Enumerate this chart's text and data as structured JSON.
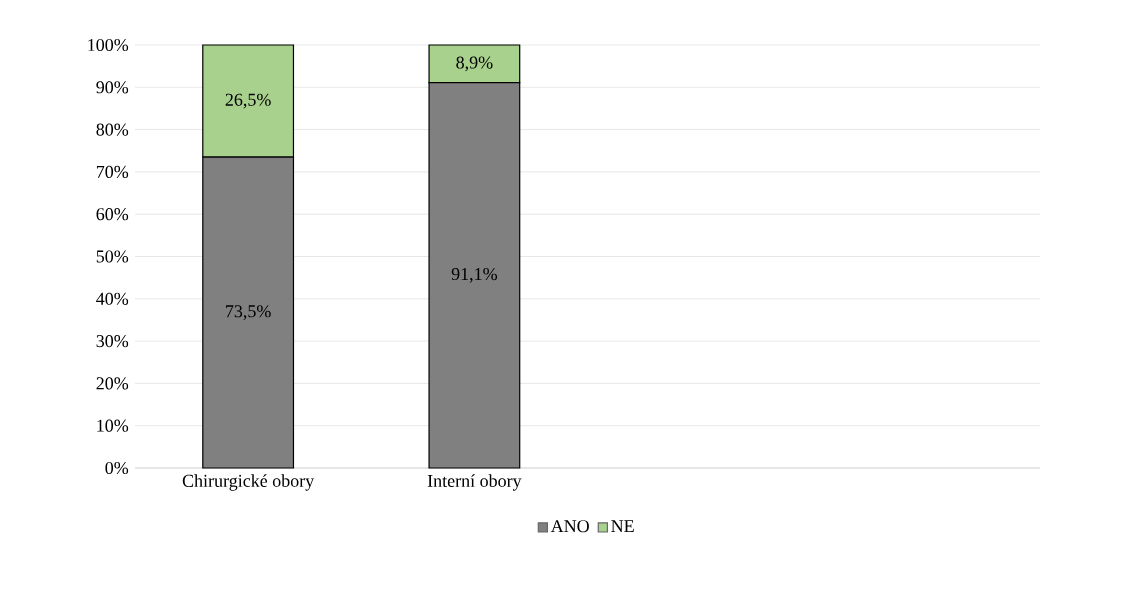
{
  "chart_data": {
    "type": "bar",
    "stacked": true,
    "categories": [
      "Chirurgické obory",
      "Interní obory",
      null,
      null
    ],
    "series": [
      {
        "name": "ANO",
        "color": "#808080",
        "values": [
          73.5,
          91.1,
          null,
          null
        ],
        "value_labels": [
          "73,5%",
          "91,1%",
          null,
          null
        ]
      },
      {
        "name": "NE",
        "color": "#a9d18e",
        "values": [
          26.5,
          8.9,
          null,
          null
        ],
        "value_labels": [
          "26,5%",
          "8,9%",
          null,
          null
        ]
      }
    ],
    "ylim": [
      0,
      100
    ],
    "yticks": [
      {
        "value": 0,
        "label": "0%"
      },
      {
        "value": 10,
        "label": "10%"
      },
      {
        "value": 20,
        "label": "20%"
      },
      {
        "value": 30,
        "label": "30%"
      },
      {
        "value": 40,
        "label": "40%"
      },
      {
        "value": 50,
        "label": "50%"
      },
      {
        "value": 60,
        "label": "60%"
      },
      {
        "value": 70,
        "label": "70%"
      },
      {
        "value": 80,
        "label": "80%"
      },
      {
        "value": 90,
        "label": "90%"
      },
      {
        "value": 100,
        "label": "100%"
      }
    ],
    "grid": "y",
    "legend": "bottom"
  }
}
